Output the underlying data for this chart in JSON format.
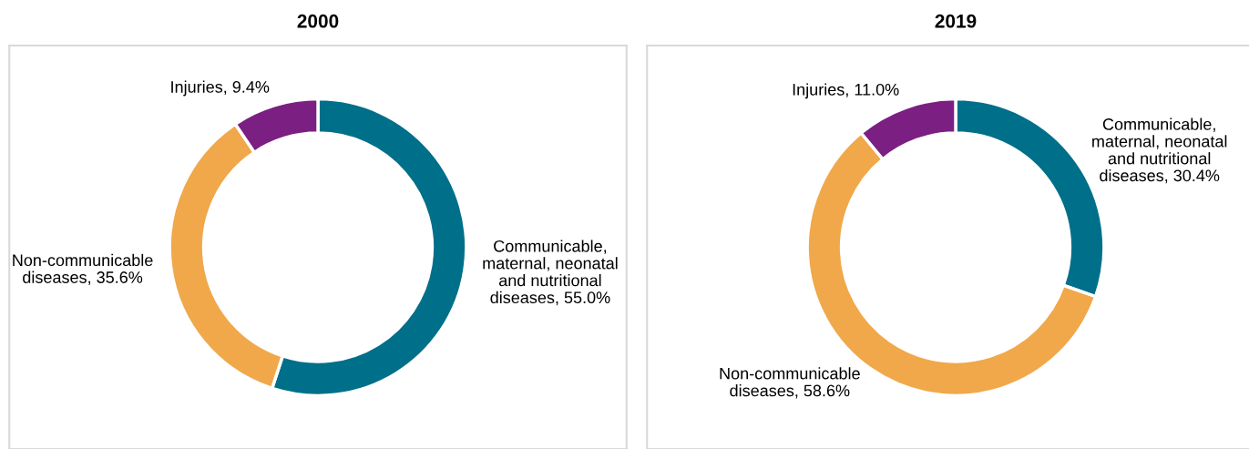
{
  "chart_data": [
    {
      "type": "donut",
      "title": "2000",
      "categories": [
        "Communicable, maternal, neonatal and nutritional diseases",
        "Non-communicable diseases",
        "Injuries"
      ],
      "values": [
        55.0,
        35.6,
        9.4
      ],
      "value_labels": [
        "55.0%",
        "35.6%",
        "9.4%"
      ],
      "colors": [
        "#006f8a",
        "#f0a84a",
        "#7b1f82"
      ],
      "legend": false
    },
    {
      "type": "donut",
      "title": "2019",
      "categories": [
        "Communicable, maternal, neonatal and nutritional diseases",
        "Non-communicable diseases",
        "Injuries"
      ],
      "values": [
        30.4,
        58.6,
        11.0
      ],
      "value_labels": [
        "30.4%",
        "58.6%",
        "11.0%"
      ],
      "colors": [
        "#006f8a",
        "#f0a84a",
        "#7b1f82"
      ],
      "legend": false
    }
  ]
}
